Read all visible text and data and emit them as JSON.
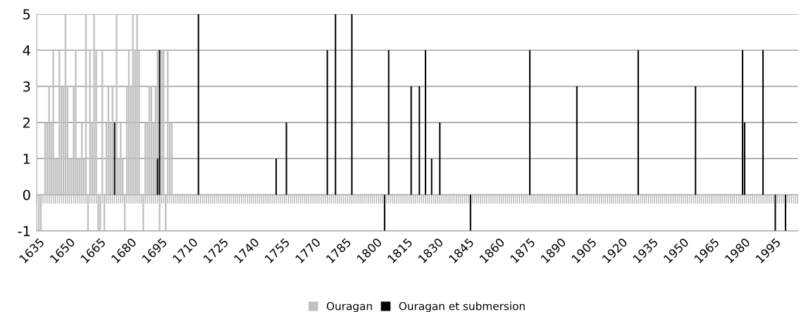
{
  "chart_data": {
    "type": "bar",
    "xlim": [
      1634,
      2006
    ],
    "xticks": [
      1635,
      1650,
      1665,
      1680,
      1695,
      1710,
      1725,
      1740,
      1755,
      1770,
      1785,
      1800,
      1815,
      1830,
      1845,
      1860,
      1875,
      1890,
      1905,
      1920,
      1935,
      1950,
      1965,
      1980,
      1995
    ],
    "ylim": [
      -1,
      5
    ],
    "yticks": [
      -1,
      0,
      1,
      2,
      3,
      4,
      5
    ],
    "grid": "y",
    "legend": "bottom",
    "series": [
      {
        "name": "Ouragan",
        "color": "#c0c0c0",
        "x": [
          1635,
          1636,
          1638,
          1639,
          1640,
          1641,
          1642,
          1643,
          1644,
          1645,
          1646,
          1647,
          1648,
          1649,
          1650,
          1651,
          1652,
          1653,
          1654,
          1655,
          1656,
          1657,
          1658,
          1659,
          1660,
          1661,
          1662,
          1663,
          1664,
          1665,
          1666,
          1667,
          1668,
          1669,
          1670,
          1671,
          1673,
          1674,
          1675,
          1676,
          1677,
          1678,
          1679,
          1680,
          1681,
          1682,
          1683,
          1684,
          1686,
          1687,
          1688,
          1689,
          1690,
          1691,
          1692,
          1693,
          1694,
          1695,
          1696,
          1697,
          1698,
          1699,
          1700
        ],
        "values": [
          -1,
          -1,
          2,
          2,
          3,
          2,
          4,
          1,
          1,
          4,
          3,
          3,
          5,
          3,
          1,
          1,
          3,
          4,
          1,
          1,
          2,
          1,
          5,
          -1,
          4,
          2,
          5,
          4,
          -1,
          -1,
          4,
          -1,
          2,
          3,
          2,
          3,
          5,
          1,
          2,
          1,
          -1,
          3,
          4,
          3,
          5,
          4,
          5,
          4,
          -1,
          2,
          2,
          3,
          3,
          2,
          3,
          4,
          -1,
          4,
          4,
          -1,
          4,
          2,
          2
        ]
      },
      {
        "name": "Ouragan et submersion",
        "color": "#000000",
        "x": [
          1672,
          1693,
          1694,
          1713,
          1751,
          1756,
          1776,
          1780,
          1788,
          1804,
          1806,
          1817,
          1821,
          1824,
          1827,
          1831,
          1846,
          1875,
          1898,
          1928,
          1956,
          1979,
          1980,
          1989,
          1995,
          2000
        ],
        "values": [
          2,
          1,
          4,
          5,
          1,
          2,
          4,
          5,
          5,
          -1,
          4,
          3,
          3,
          4,
          1,
          2,
          -1,
          4,
          3,
          4,
          3,
          4,
          2,
          4,
          -1,
          -1
        ]
      }
    ]
  }
}
